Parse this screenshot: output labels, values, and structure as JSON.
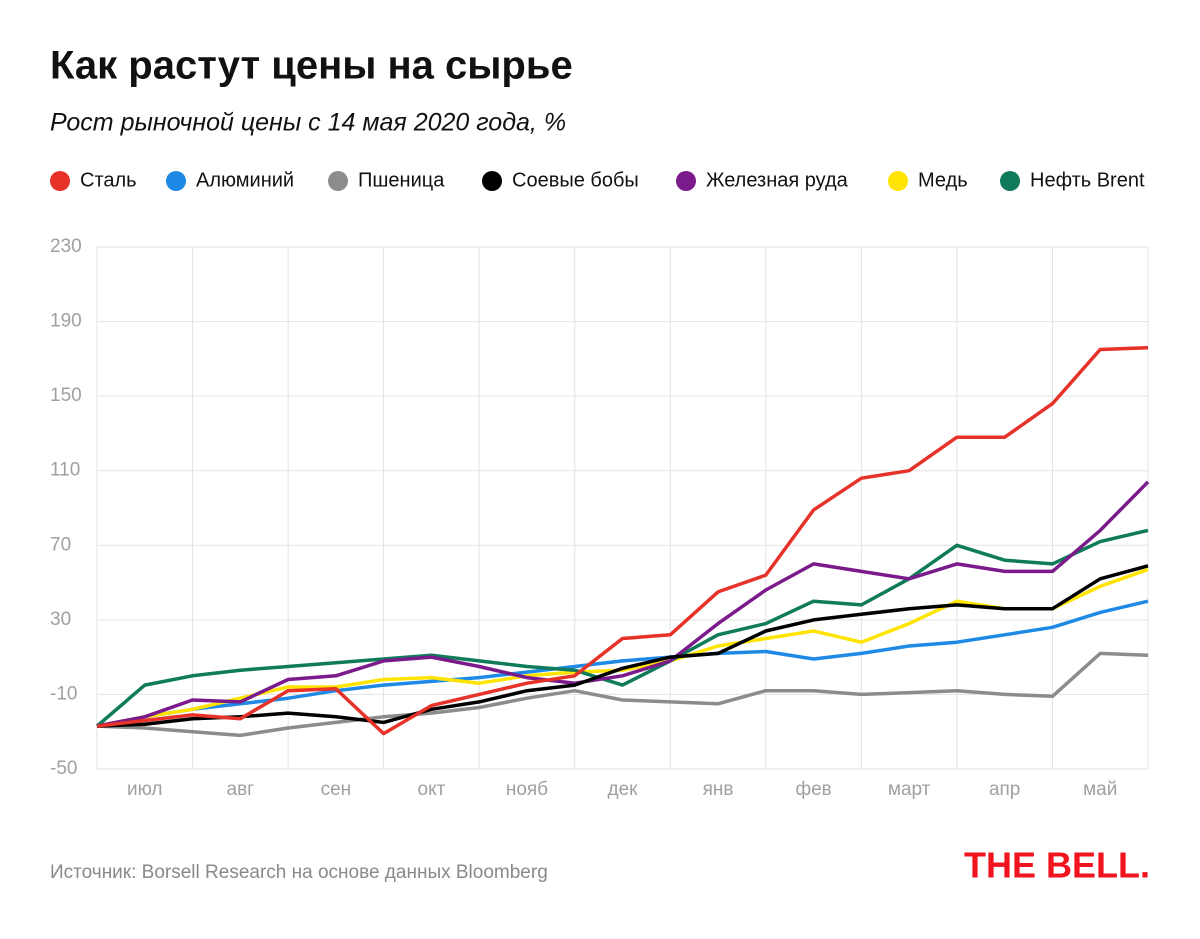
{
  "chart_data": {
    "type": "line",
    "title": "Как растут цены на сырье",
    "subtitle": "Рост рыночной цены с 14 мая 2020 года, %",
    "source": "Источник: Borsell Research на основе данных Bloomberg",
    "logo": "THE BELL.",
    "categories": [
      null,
      "июл",
      null,
      "авг",
      null,
      "сен",
      null,
      "окт",
      null,
      "нояб",
      null,
      "дек",
      null,
      "янв",
      null,
      "фев",
      null,
      "март",
      null,
      "апр",
      null,
      "май",
      null
    ],
    "ylim": [
      -50,
      230
    ],
    "yticks": [
      -50,
      -10,
      30,
      70,
      110,
      150,
      190,
      230
    ],
    "grid": true,
    "legend": "top",
    "series": [
      {
        "name": "Сталь",
        "color": "#e63228",
        "values": [
          -27,
          -24,
          -21,
          -23,
          -8,
          -7,
          -31,
          -16,
          -10,
          -4,
          0,
          20,
          22,
          45,
          54,
          89,
          106,
          110,
          128,
          128,
          146,
          175,
          176
        ]
      },
      {
        "name": "Алюминий",
        "color": "#1e8ae6",
        "values": [
          -27,
          -22,
          -18,
          -15,
          -12,
          -8,
          -5,
          -3,
          -1,
          2,
          5,
          8,
          10,
          12,
          13,
          9,
          12,
          16,
          18,
          22,
          26,
          34,
          40
        ]
      },
      {
        "name": "Пшеница",
        "color": "#8c8c8c",
        "values": [
          -27,
          -28,
          -30,
          -32,
          -28,
          -25,
          -22,
          -20,
          -17,
          -12,
          -8,
          -13,
          -14,
          -15,
          -8,
          -8,
          -10,
          -9,
          -8,
          -10,
          -11,
          12,
          11
        ]
      },
      {
        "name": "Соевые бобы",
        "color": "#000000",
        "values": [
          -27,
          -26,
          -23,
          -22,
          -20,
          -22,
          -25,
          -18,
          -14,
          -8,
          -5,
          4,
          10,
          12,
          24,
          30,
          33,
          36,
          38,
          36,
          36,
          52,
          59
        ]
      },
      {
        "name": "Железная руда",
        "color": "#7b1a8a",
        "values": [
          -27,
          -22,
          -13,
          -14,
          -2,
          0,
          8,
          10,
          5,
          -1,
          -4,
          0,
          8,
          28,
          46,
          60,
          56,
          52,
          60,
          56,
          56,
          78,
          104
        ]
      },
      {
        "name": "Медь",
        "color": "#ffe400",
        "values": [
          -27,
          -22,
          -18,
          -12,
          -6,
          -6,
          -2,
          -1,
          -4,
          0,
          2,
          3,
          8,
          16,
          20,
          24,
          18,
          28,
          40,
          36,
          36,
          48,
          57
        ]
      },
      {
        "name": "Нефть Brent",
        "color": "#0f7b5b",
        "values": [
          -27,
          -5,
          0,
          3,
          5,
          7,
          9,
          11,
          8,
          5,
          3,
          -5,
          8,
          22,
          28,
          40,
          38,
          52,
          70,
          62,
          60,
          72,
          78
        ]
      }
    ]
  }
}
